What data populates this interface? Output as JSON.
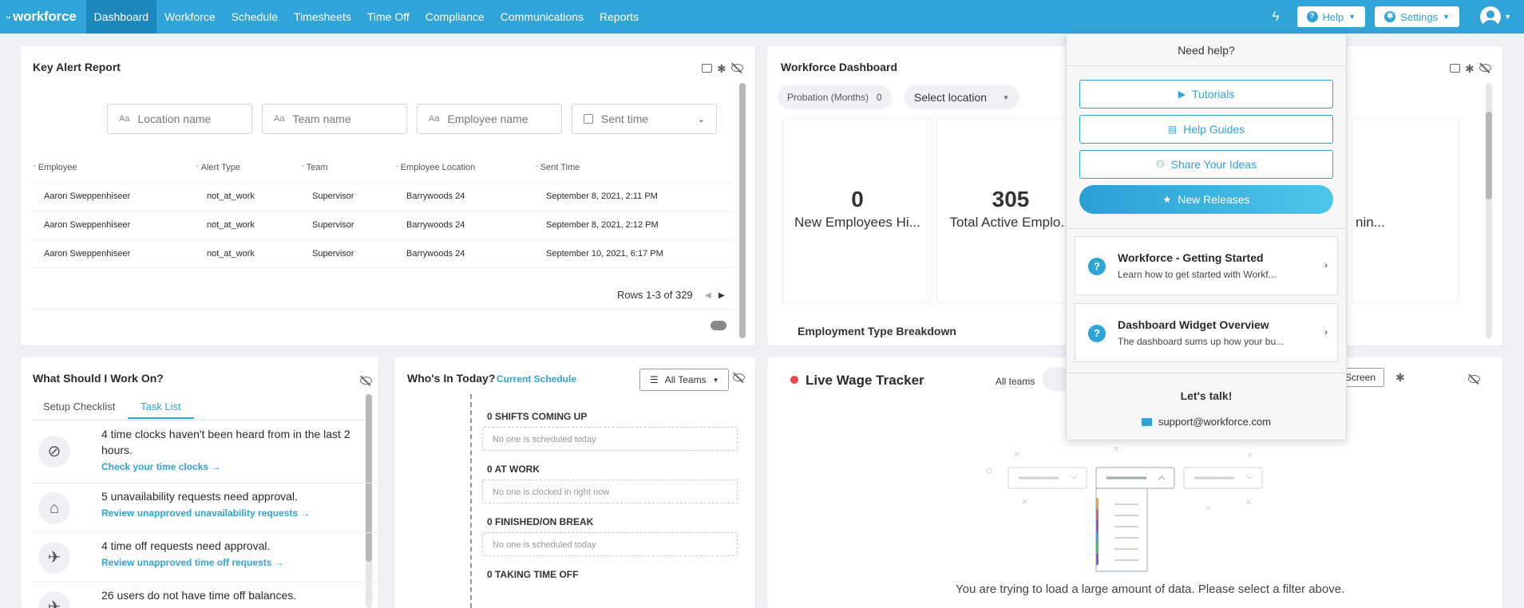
{
  "nav": {
    "logo": "workforce",
    "items": [
      "Dashboard",
      "Workforce",
      "Schedule",
      "Timesheets",
      "Time Off",
      "Compliance",
      "Communications",
      "Reports"
    ],
    "help_label": "Help",
    "settings_label": "Settings",
    "accent": "#2fa4d6"
  },
  "key_alert": {
    "title": "Key Alert Report",
    "filters": {
      "location": "Location name",
      "team": "Team name",
      "employee": "Employee name",
      "sent_time": "Sent time"
    },
    "columns": [
      "Employee",
      "Alert Type",
      "Team",
      "Employee Location",
      "Sent Time"
    ],
    "rows": [
      [
        "Aaron Sweppenhiseer",
        "not_at_work",
        "Supervisor",
        "Barrywoods 24",
        "September 8, 2021, 2:11 PM"
      ],
      [
        "Aaron Sweppenhiseer",
        "not_at_work",
        "Supervisor",
        "Barrywoods 24",
        "September 8, 2021, 2:12 PM"
      ],
      [
        "Aaron Sweppenhiseer",
        "not_at_work",
        "Supervisor",
        "Barrywoods 24",
        "September 10, 2021, 6:17 PM"
      ]
    ],
    "rows_info": "Rows 1-3 of 329"
  },
  "workforce_dashboard": {
    "title": "Workforce Dashboard",
    "probation_label": "Probation (Months)",
    "probation_value": "0",
    "select_location": "Select location",
    "stats": [
      {
        "num": "0",
        "label": "New Employees Hi..."
      },
      {
        "num": "305",
        "label": "Total Active Emplo..."
      }
    ],
    "partial_label": "nin...",
    "employment_breakdown": "Employment Type Breakdown"
  },
  "work_on": {
    "title": "What Should I Work On?",
    "tabs": [
      "Setup Checklist",
      "Task List"
    ],
    "tasks": [
      {
        "text1": "4 time clocks haven't been heard from in the last 2",
        "text2": "hours.",
        "link": "Check your time clocks"
      },
      {
        "text1": "5 unavailability requests need approval.",
        "link": "Review unapproved unavailability requests"
      },
      {
        "text1": "4 time off requests need approval.",
        "link": "Review unapproved time off requests"
      },
      {
        "text1": "26 users do not have time off balances."
      }
    ]
  },
  "whos_in": {
    "title": "Who's In Today?",
    "schedule_link": "Current Schedule",
    "teams_btn": "All Teams",
    "groups": [
      {
        "title": "0 SHIFTS COMING UP",
        "empty": "No one is scheduled today"
      },
      {
        "title": "0 AT WORK",
        "empty": "No one is clocked in right now"
      },
      {
        "title": "0 FINISHED/ON BREAK",
        "empty": "No one is scheduled today"
      },
      {
        "title": "0 TAKING TIME OFF"
      }
    ]
  },
  "wage": {
    "title": "Live Wage Tracker",
    "all_teams": "All teams",
    "fullscreen": "l Screen",
    "empty_msg": "You are trying to load a large amount of data. Please select a filter above."
  },
  "help_panel": {
    "heading": "Need help?",
    "buttons": [
      "Tutorials",
      "Help Guides",
      "Share Your Ideas",
      "New Releases"
    ],
    "cards": [
      {
        "title": "Workforce - Getting Started",
        "desc": "Learn how to get started with Workf..."
      },
      {
        "title": "Dashboard Widget Overview",
        "desc": "The dashboard sums up how your bu..."
      }
    ],
    "talk": "Let's talk!",
    "email": "support@workforce.com"
  }
}
